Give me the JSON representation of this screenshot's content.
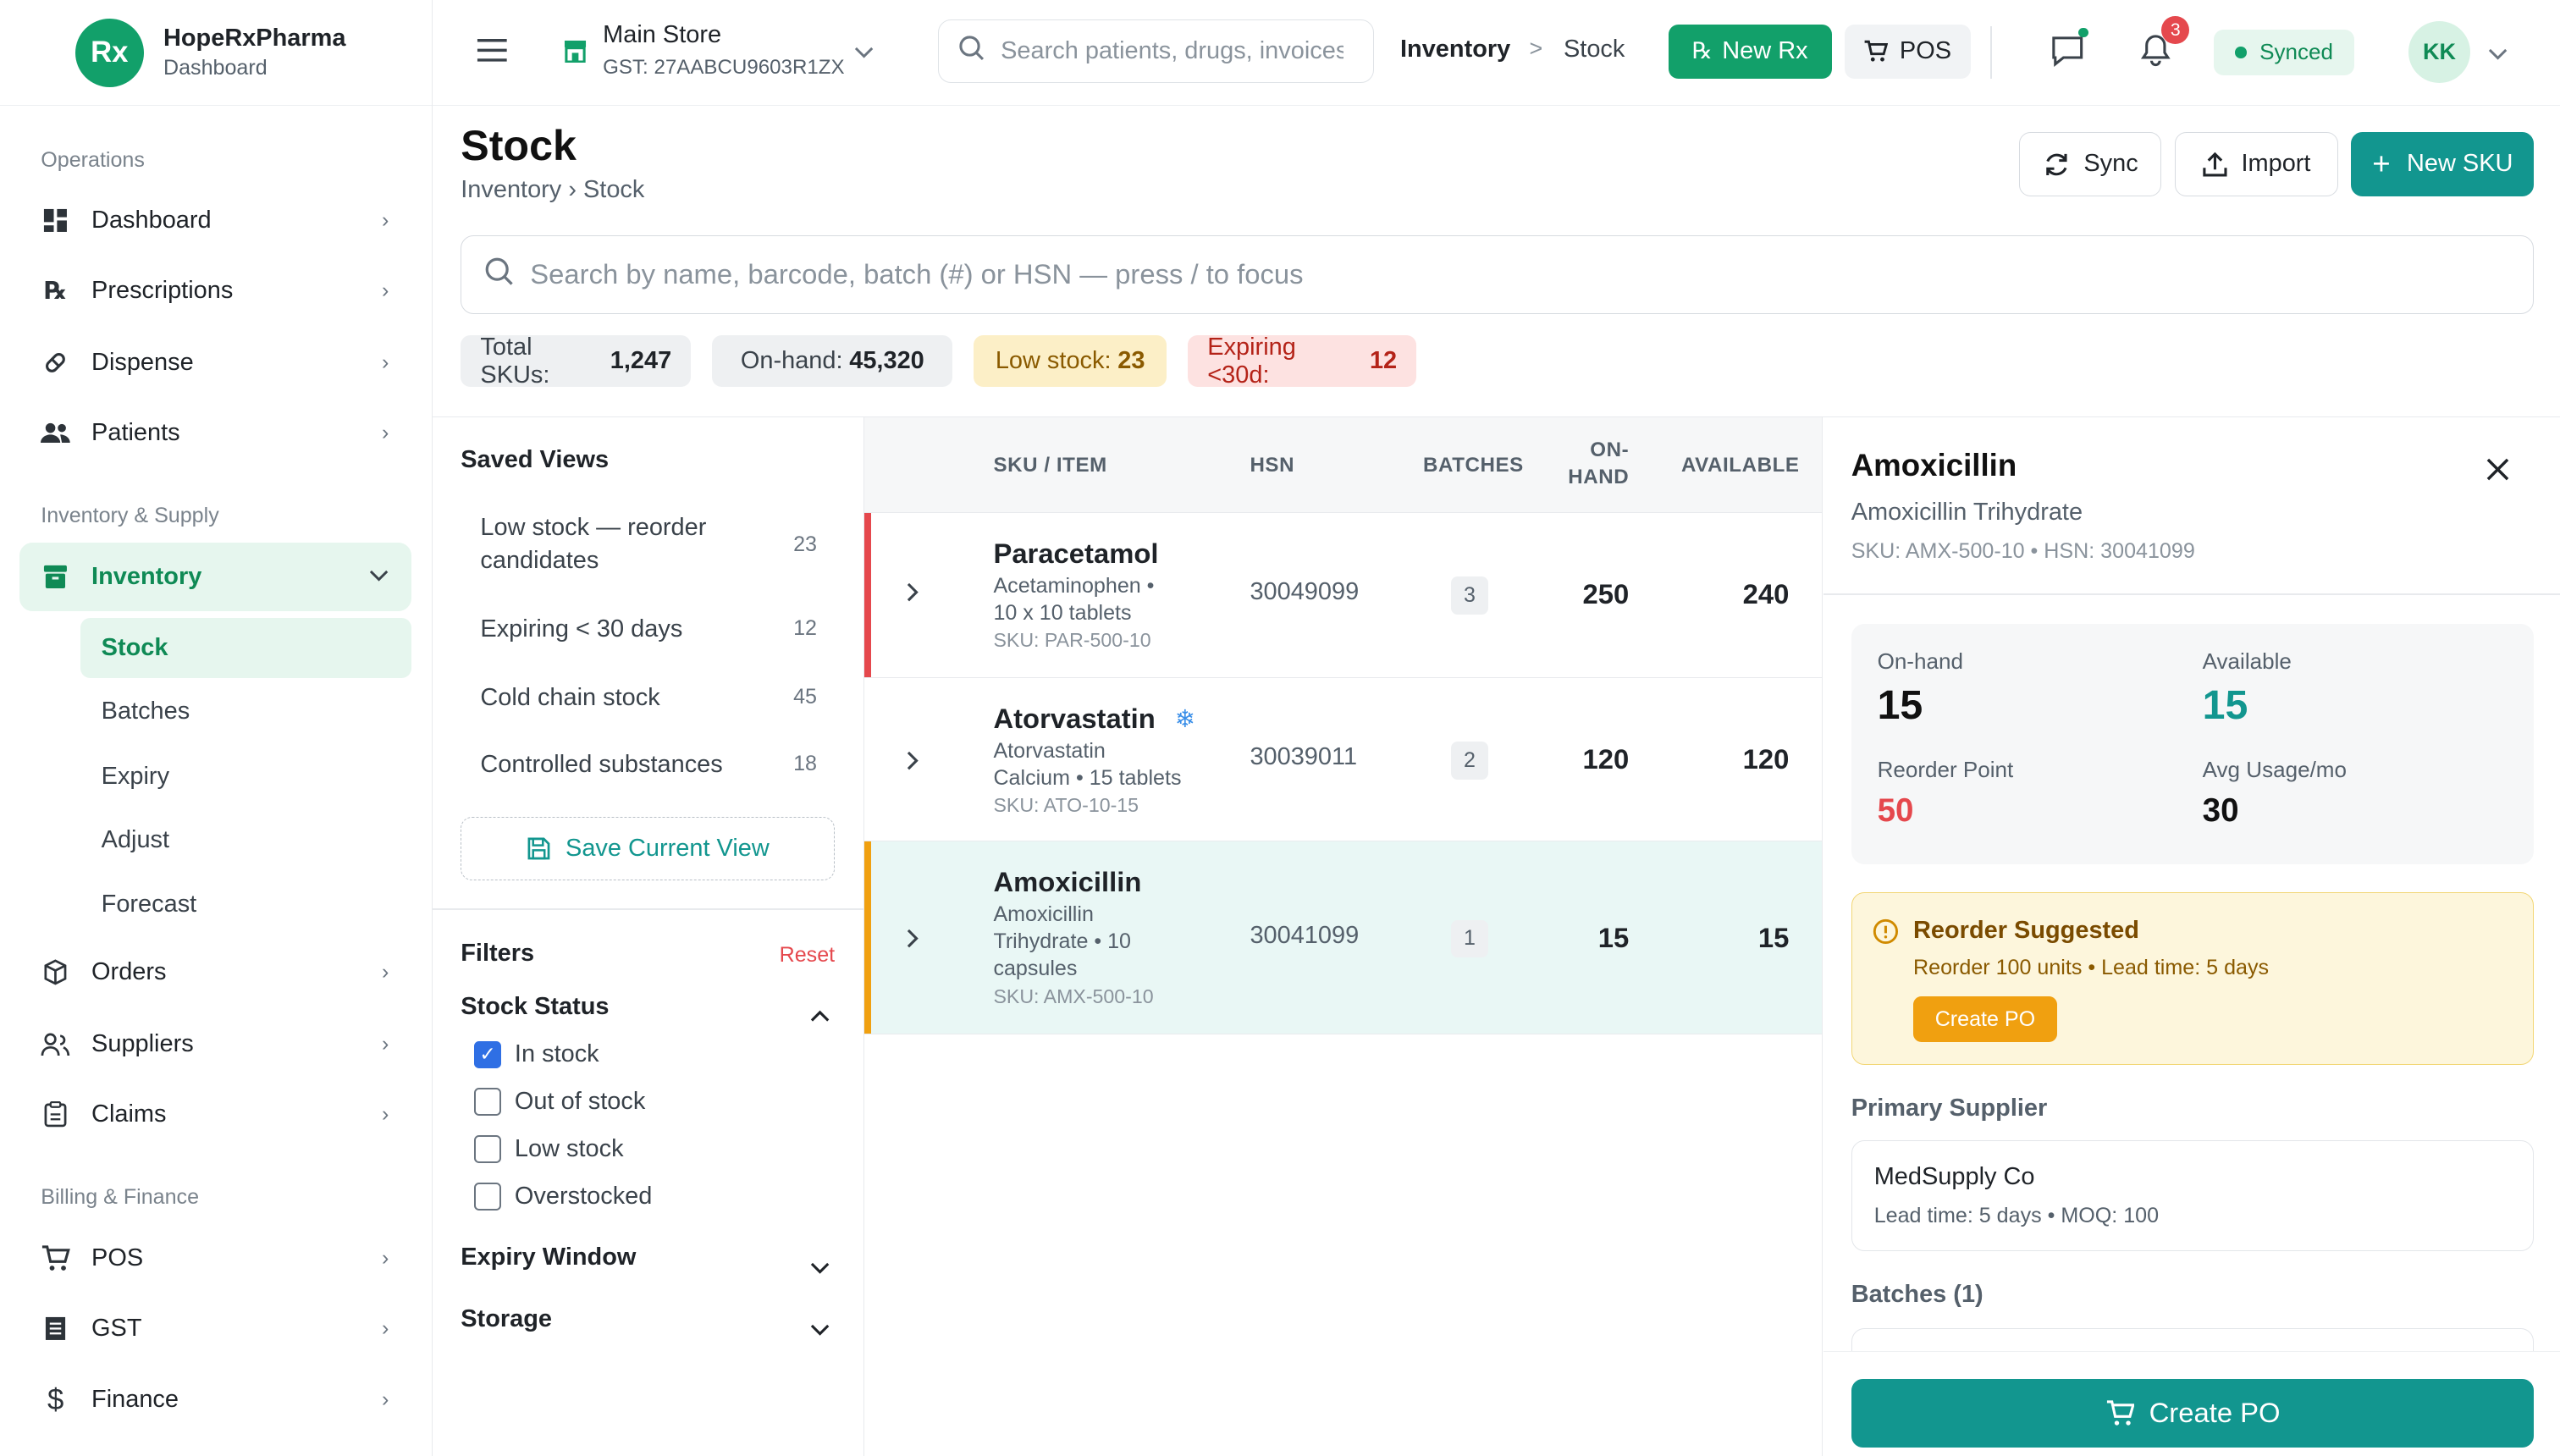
{
  "brand": {
    "logo": "Rx",
    "name": "HopeRxPharma",
    "subtitle": "Dashboard"
  },
  "sidebar": {
    "sections": [
      {
        "label": "Operations"
      },
      {
        "label": "Inventory & Supply"
      },
      {
        "label": "Billing & Finance"
      }
    ],
    "items": [
      {
        "label": "Dashboard",
        "icon": "dashboard-icon"
      },
      {
        "label": "Prescriptions",
        "icon": "rx-icon"
      },
      {
        "label": "Dispense",
        "icon": "pill-icon"
      },
      {
        "label": "Patients",
        "icon": "people-icon"
      },
      {
        "label": "Inventory",
        "icon": "inventory-icon",
        "active": true
      },
      {
        "label": "Orders",
        "icon": "box-icon"
      },
      {
        "label": "Suppliers",
        "icon": "users-icon"
      },
      {
        "label": "Claims",
        "icon": "clipboard-icon"
      },
      {
        "label": "POS",
        "icon": "cart-icon"
      },
      {
        "label": "GST",
        "icon": "receipt-icon"
      },
      {
        "label": "Finance",
        "icon": "dollar-icon"
      }
    ],
    "inventory_sub": [
      "Stock",
      "Batches",
      "Expiry",
      "Adjust",
      "Forecast"
    ]
  },
  "topbar": {
    "store_name": "Main Store",
    "store_gst": "GST: 27AABCU9603R1ZX",
    "search_placeholder": "Search patients, drugs, invoices",
    "crumb_1": "Inventory",
    "crumb_sep": ">",
    "crumb_2": "Stock",
    "new_rx": "New Rx",
    "pos": "POS",
    "notifications": "3",
    "sync_status": "Synced",
    "avatar": "KK"
  },
  "page": {
    "title": "Stock",
    "breadcrumb": "Inventory › Stock",
    "sync": "Sync",
    "import": "Import",
    "new_sku": "New SKU",
    "search_placeholder": "Search by name, barcode, batch (#) or HSN — press / to focus"
  },
  "stats": [
    {
      "label": "Total SKUs:",
      "value": "1,247",
      "bg": "#eef0f2",
      "fg": "#3a424a"
    },
    {
      "label": "On-hand:",
      "value": "45,320",
      "bg": "#eef0f2",
      "fg": "#3a424a"
    },
    {
      "label": "Low stock:",
      "value": "23",
      "bg": "#fcefc7",
      "fg": "#8a5a00"
    },
    {
      "label": "Expiring <30d:",
      "value": "12",
      "bg": "#fde2e1",
      "fg": "#b42318"
    }
  ],
  "saved_views": {
    "title": "Saved Views",
    "items": [
      {
        "line1": "Low stock — reorder",
        "line2": "candidates",
        "count": "23"
      },
      {
        "line1": "Expiring < 30 days",
        "line2": "",
        "count": "12"
      },
      {
        "line1": "Cold chain stock",
        "line2": "",
        "count": "45"
      },
      {
        "line1": "Controlled substances",
        "line2": "",
        "count": "18"
      }
    ],
    "save_label": "Save Current View"
  },
  "filters": {
    "title": "Filters",
    "reset": "Reset",
    "stock_status": "Stock Status",
    "options": [
      {
        "label": "In stock",
        "checked": true
      },
      {
        "label": "Out of stock",
        "checked": false
      },
      {
        "label": "Low stock",
        "checked": false
      },
      {
        "label": "Overstocked",
        "checked": false
      }
    ],
    "expiry_window": "Expiry Window",
    "storage": "Storage"
  },
  "table": {
    "headers": {
      "item": "SKU / ITEM",
      "hsn": "HSN",
      "batches": "BATCHES",
      "onhand_1": "ON-",
      "onhand_2": "HAND",
      "available": "AVAILABLE"
    },
    "rows": [
      {
        "name": "Paracetamol",
        "sub_1": "Acetaminophen •",
        "sub_2": "10 x 10 tablets",
        "sub_3": "",
        "sku": "SKU: PAR-500-10",
        "hsn": "30049099",
        "batches": "3",
        "onhand": "250",
        "available": "240",
        "bar": "#e5484d",
        "cold": false
      },
      {
        "name": "Atorvastatin",
        "sub_1": "Atorvastatin",
        "sub_2": "Calcium • 15 tablets",
        "sub_3": "",
        "sku": "SKU: ATO-10-15",
        "hsn": "30039011",
        "batches": "2",
        "onhand": "120",
        "available": "120",
        "bar": "",
        "cold": true
      },
      {
        "name": "Amoxicillin",
        "sub_1": "Amoxicillin",
        "sub_2": "Trihydrate • 10",
        "sub_3": "capsules",
        "sku": "SKU: AMX-500-10",
        "hsn": "30041099",
        "batches": "1",
        "onhand": "15",
        "available": "15",
        "bar": "#f0a010",
        "cold": false
      }
    ]
  },
  "detail": {
    "title": "Amoxicillin",
    "subtitle": "Amoxicillin Trihydrate",
    "sku_line": "SKU: AMX-500-10 • HSN: 30041099",
    "onhand_label": "On-hand",
    "onhand": "15",
    "available_label": "Available",
    "available": "15",
    "reorder_label": "Reorder Point",
    "reorder": "50",
    "usage_label": "Avg Usage/mo",
    "usage": "30",
    "reorder_title": "Reorder Suggested",
    "reorder_sub": "Reorder 100 units • Lead time: 5 days",
    "reorder_btn": "Create PO",
    "supplier_title": "Primary Supplier",
    "supplier_name": "MedSupply Co",
    "supplier_meta": "Lead time: 5 days • MOQ: 100",
    "batches_title": "Batches (1)",
    "create_po": "Create PO"
  },
  "colors": {
    "brand_green": "#12a06a",
    "teal": "#12968f",
    "danger": "#e5484d",
    "warning": "#f0a010"
  }
}
